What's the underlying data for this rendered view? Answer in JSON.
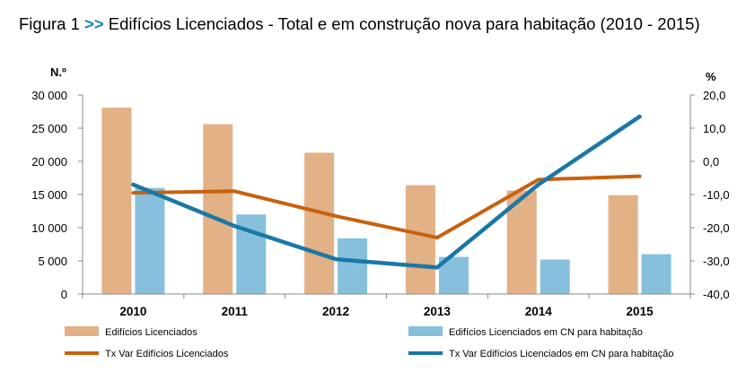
{
  "figure": {
    "prefix": "Figura 1",
    "arrows": ">>",
    "title": "Edifícios Licenciados - Total e em construção nova para habitação (2010 - 2015)"
  },
  "chart_data": {
    "type": "bar",
    "title": "Edifícios Licenciados - Total e em construção nova para habitação (2010 - 2015)",
    "categories": [
      "2010",
      "2011",
      "2012",
      "2013",
      "2014",
      "2015"
    ],
    "y_left": {
      "label": "N.º",
      "range": [
        0,
        30000
      ],
      "ticks": [
        "0",
        "5 000",
        "10 000",
        "15 000",
        "20 000",
        "25 000",
        "30 000"
      ]
    },
    "y_right": {
      "label": "%",
      "range": [
        -40,
        20
      ],
      "ticks": [
        "-40,0",
        "-30,0",
        "-20,0",
        "-10,0",
        "0,0",
        "10,0",
        "20,0"
      ]
    },
    "series": [
      {
        "name": "Edifícios Licenciados",
        "kind": "bar",
        "axis": "left",
        "color": "#e2b185",
        "values": [
          28100,
          25600,
          21300,
          16400,
          15600,
          14900
        ]
      },
      {
        "name": "Edifícios Licenciados  em CN para habitação",
        "kind": "bar",
        "axis": "left",
        "color": "#86c0dd",
        "values": [
          16000,
          12000,
          8400,
          5600,
          5200,
          6000
        ]
      },
      {
        "name": "Tx Var Edifícios Licenciados",
        "kind": "line",
        "axis": "right",
        "color": "#c8610e",
        "values": [
          -9.5,
          -9.0,
          -16.5,
          -23.0,
          -5.5,
          -4.5
        ]
      },
      {
        "name": "Tx Var Edifícios Licenciados  em CN para habitação",
        "kind": "line",
        "axis": "right",
        "color": "#1a77a6",
        "values": [
          -7.0,
          -19.5,
          -29.5,
          -32.0,
          -7.0,
          13.5
        ]
      }
    ],
    "legend_position": "bottom"
  }
}
